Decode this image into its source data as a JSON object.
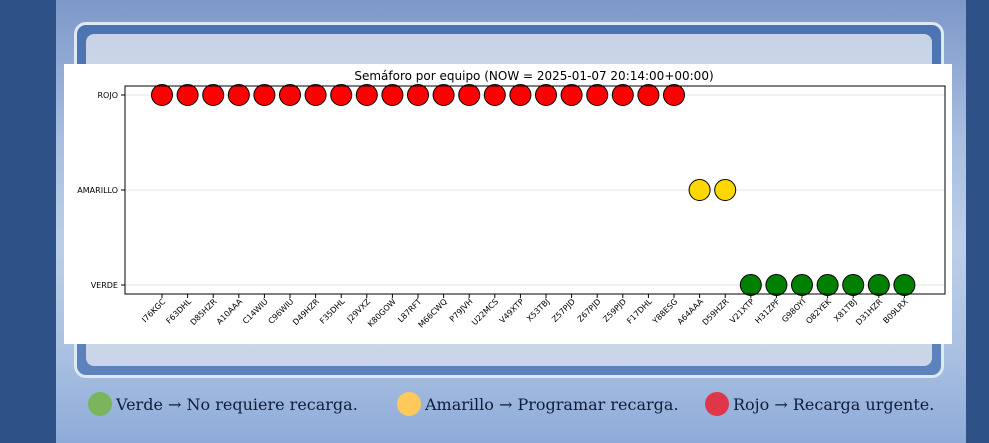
{
  "chart_data": {
    "type": "scatter",
    "title": "Semáforo por equipo (NOW = 2025-01-07 20:14:00+00:00)",
    "xlabel": "",
    "ylabel": "",
    "y_categories": [
      "VERDE",
      "AMARILLO",
      "ROJO"
    ],
    "grid": true,
    "colors": {
      "ROJO": "#ff0000",
      "AMARILLO": "#ffd700",
      "VERDE": "#008000"
    },
    "points": [
      {
        "x": "I76KGC",
        "y": "ROJO"
      },
      {
        "x": "F63DHL",
        "y": "ROJO"
      },
      {
        "x": "D85HZR",
        "y": "ROJO"
      },
      {
        "x": "A10AAA",
        "y": "ROJO"
      },
      {
        "x": "C14WIU",
        "y": "ROJO"
      },
      {
        "x": "C96WIU",
        "y": "ROJO"
      },
      {
        "x": "D49HZR",
        "y": "ROJO"
      },
      {
        "x": "F35DHL",
        "y": "ROJO"
      },
      {
        "x": "J29VXZ",
        "y": "ROJO"
      },
      {
        "x": "K80GOW",
        "y": "ROJO"
      },
      {
        "x": "L87RFT",
        "y": "ROJO"
      },
      {
        "x": "M66CWQ",
        "y": "ROJO"
      },
      {
        "x": "P79JVH",
        "y": "ROJO"
      },
      {
        "x": "U22MCS",
        "y": "ROJO"
      },
      {
        "x": "V49XTP",
        "y": "ROJO"
      },
      {
        "x": "X53TBJ",
        "y": "ROJO"
      },
      {
        "x": "Z57PJD",
        "y": "ROJO"
      },
      {
        "x": "Z67PJD",
        "y": "ROJO"
      },
      {
        "x": "Z59PJD",
        "y": "ROJO"
      },
      {
        "x": "F17DHL",
        "y": "ROJO"
      },
      {
        "x": "Y88ESG",
        "y": "ROJO"
      },
      {
        "x": "A64AAA",
        "y": "AMARILLO"
      },
      {
        "x": "D59HZR",
        "y": "AMARILLO"
      },
      {
        "x": "V21XTP",
        "y": "VERDE"
      },
      {
        "x": "H31ZPF",
        "y": "VERDE"
      },
      {
        "x": "G98OYI",
        "y": "VERDE"
      },
      {
        "x": "O82YEK",
        "y": "VERDE"
      },
      {
        "x": "X81TBJ",
        "y": "VERDE"
      },
      {
        "x": "D31HZR",
        "y": "VERDE"
      },
      {
        "x": "B09LRX",
        "y": "VERDE"
      }
    ]
  },
  "legend": [
    {
      "label": "Verde → No requiere recarga.",
      "color": "#7ab55c"
    },
    {
      "label": "Amarillo → Programar recarga.",
      "color": "#ffc95c"
    },
    {
      "label": "Rojo → Recarga urgente.",
      "color": "#e0364a"
    }
  ]
}
